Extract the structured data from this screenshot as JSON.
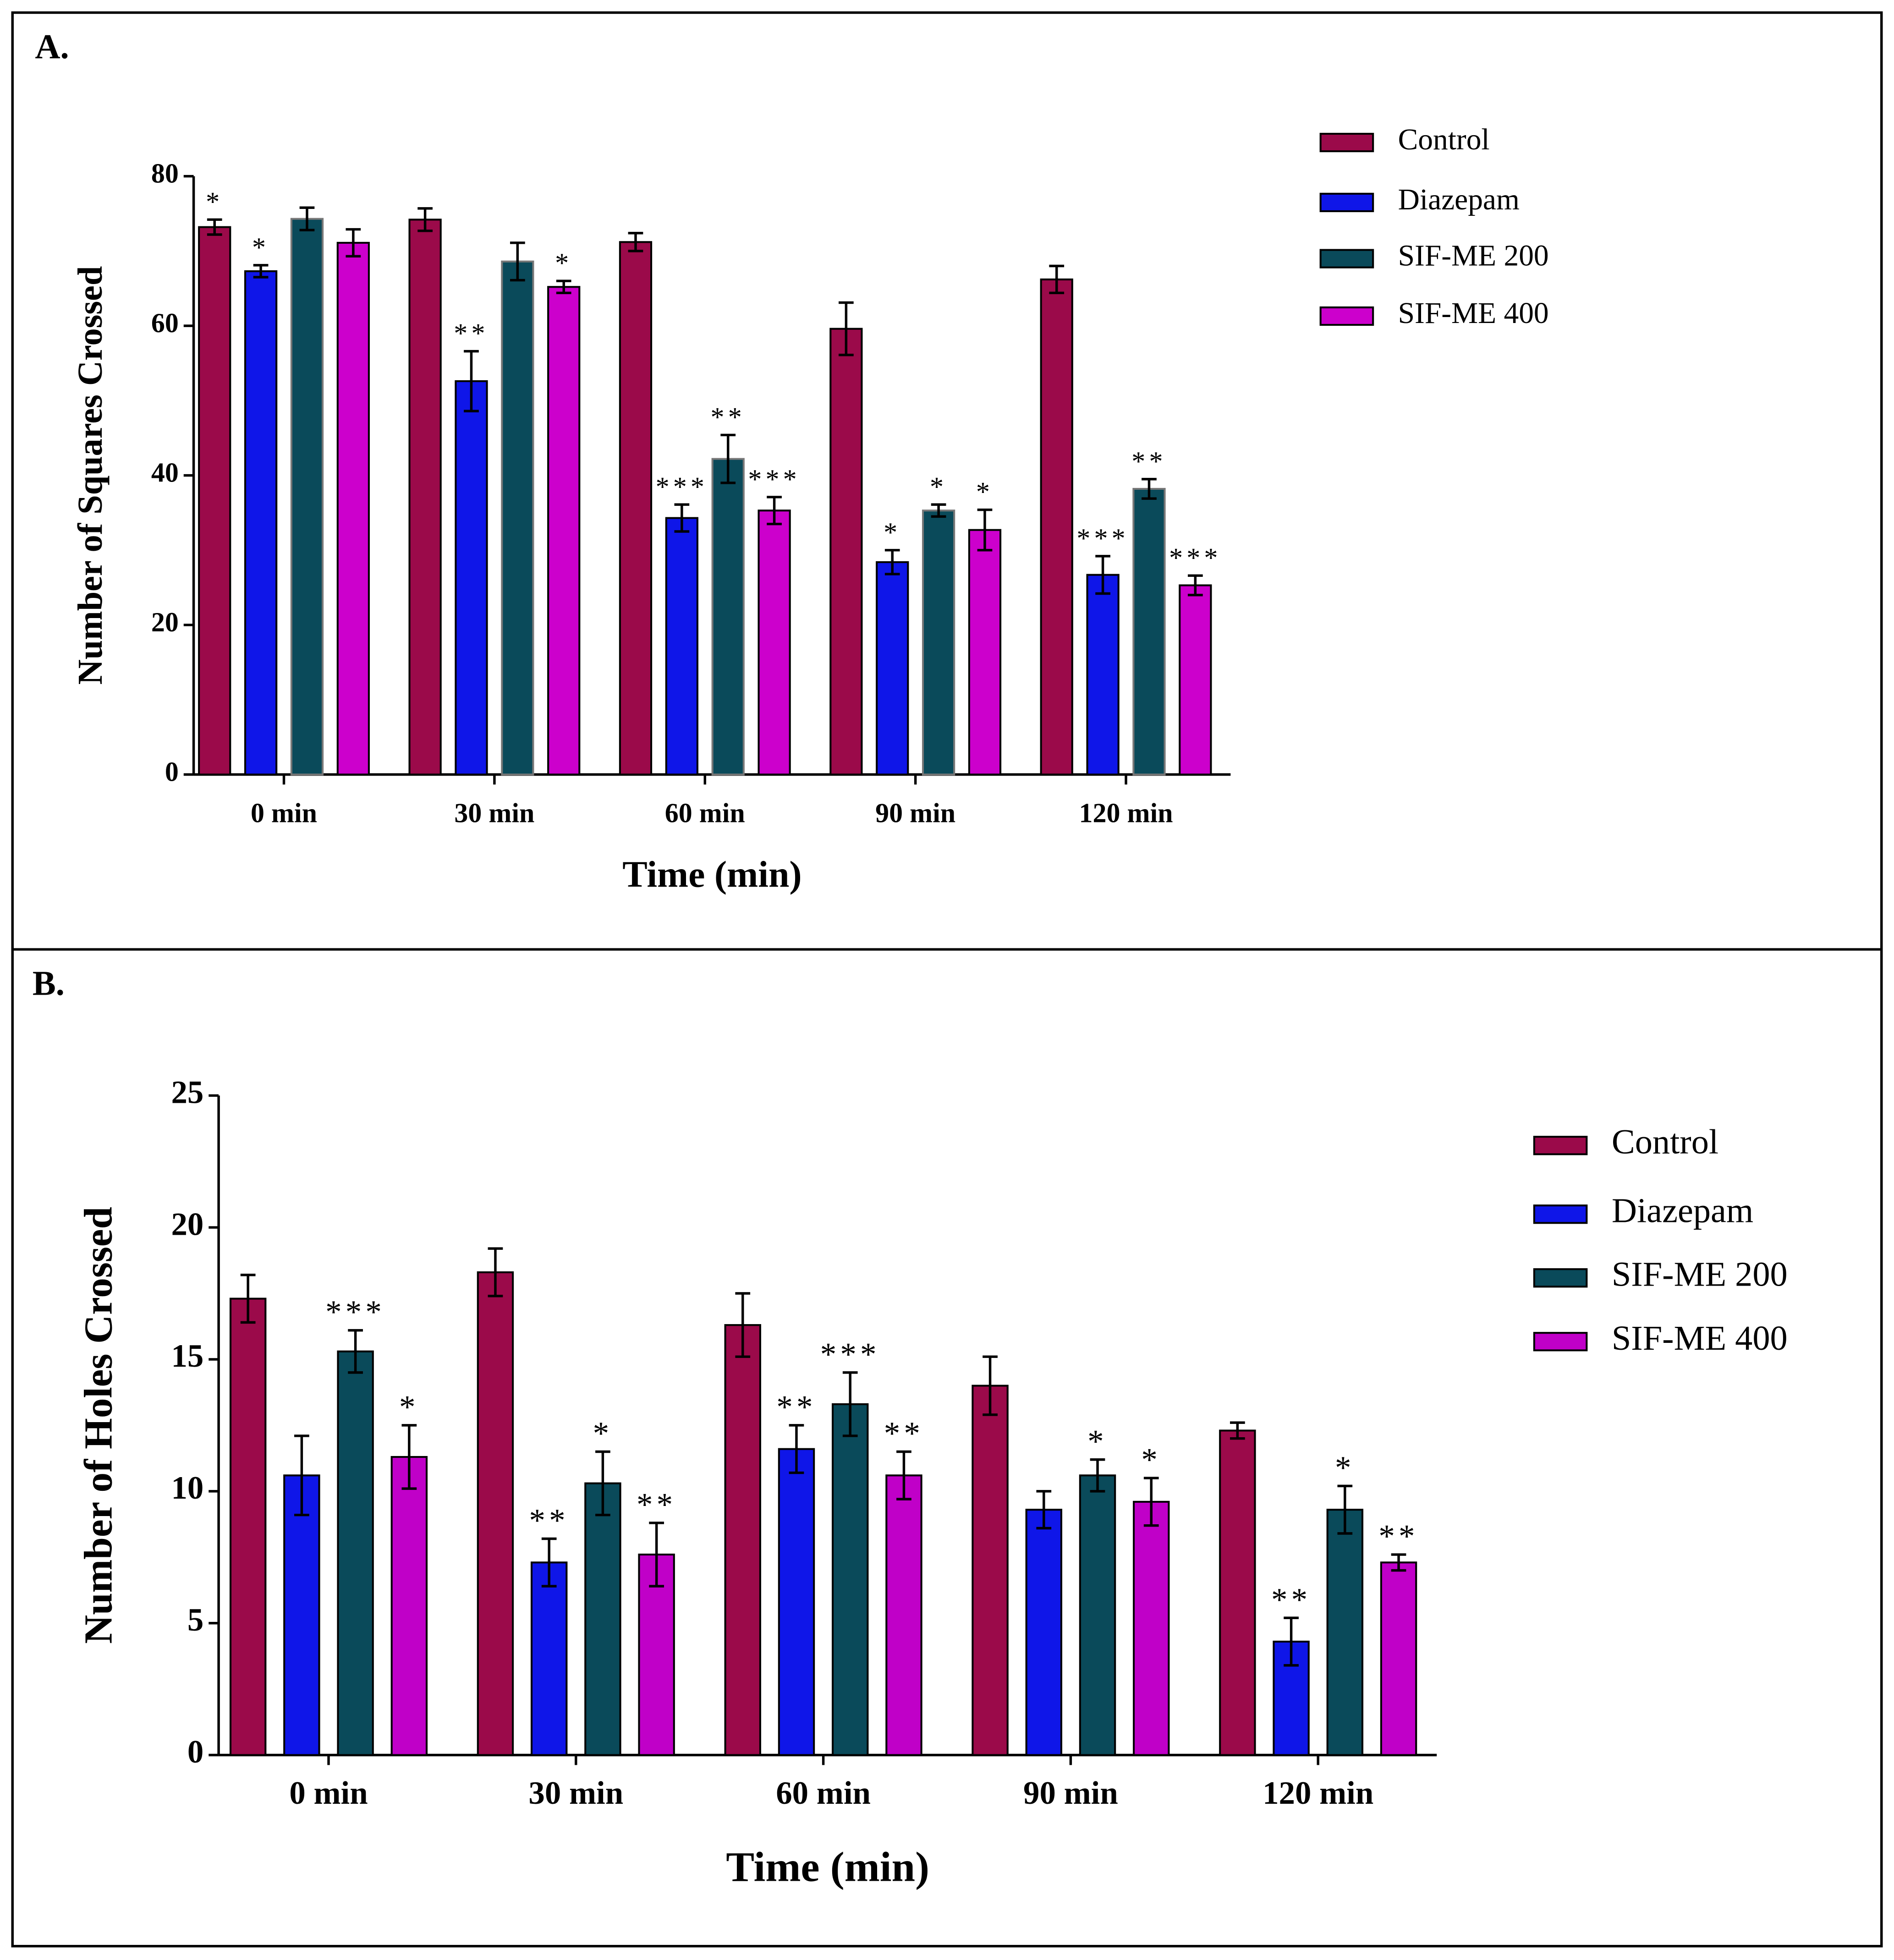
{
  "chart_data": [
    {
      "type": "bar",
      "panel_label": "A.",
      "x_label": "Time (min)",
      "y_label": "Number of Squares Crossed",
      "categories": [
        "0 min",
        "30 min",
        "60 min",
        "90 min",
        "120 min"
      ],
      "ylim": [
        0,
        80
      ],
      "yticks": [
        0,
        20,
        40,
        60,
        80
      ],
      "series": [
        {
          "name": "Control",
          "color": "#9b0a4a",
          "values": [
            73.2,
            74.2,
            71.2,
            59.6,
            66.2
          ],
          "errors": [
            1.0,
            1.5,
            1.2,
            3.5,
            1.8
          ],
          "significance": [
            "*",
            null,
            null,
            null,
            null
          ]
        },
        {
          "name": "Diazepam",
          "color": "#0f16e8",
          "values": [
            67.3,
            52.6,
            34.3,
            28.4,
            26.7
          ],
          "errors": [
            0.8,
            4.0,
            1.8,
            1.6,
            2.5
          ],
          "significance": [
            "*",
            "**",
            "***",
            "*",
            "***"
          ]
        },
        {
          "name": "SIF-ME 200",
          "color": "#0a4a5a",
          "values": [
            74.3,
            68.6,
            42.2,
            35.3,
            38.2
          ],
          "errors": [
            1.5,
            2.5,
            3.2,
            0.8,
            1.3
          ],
          "significance": [
            null,
            null,
            "**",
            "*",
            "**"
          ]
        },
        {
          "name": "SIF-ME 400",
          "color": "#cc00cc",
          "values": [
            71.1,
            65.2,
            35.3,
            32.7,
            25.3
          ],
          "errors": [
            1.8,
            0.8,
            1.8,
            2.7,
            1.3
          ],
          "significance": [
            null,
            "*",
            "***",
            "*",
            "***"
          ]
        }
      ]
    },
    {
      "type": "bar",
      "panel_label": "B.",
      "x_label": "Time (min)",
      "y_label": "Number of Holes Crossed",
      "categories": [
        "0 min",
        "30 min",
        "60 min",
        "90 min",
        "120 min"
      ],
      "ylim": [
        0,
        25
      ],
      "yticks": [
        0,
        5,
        10,
        15,
        20,
        25
      ],
      "series": [
        {
          "name": "Control",
          "color": "#9b0a4a",
          "values": [
            17.3,
            18.3,
            16.3,
            14.0,
            12.3
          ],
          "errors": [
            0.9,
            0.9,
            1.2,
            1.1,
            0.3
          ],
          "significance": [
            null,
            null,
            null,
            null,
            null
          ]
        },
        {
          "name": "Diazepam",
          "color": "#0f16e8",
          "values": [
            10.6,
            7.3,
            11.6,
            9.3,
            4.3
          ],
          "errors": [
            1.5,
            0.9,
            0.9,
            0.7,
            0.9
          ],
          "significance": [
            null,
            "**",
            "**",
            null,
            "**"
          ]
        },
        {
          "name": "SIF-ME 200",
          "color": "#0a4a5a",
          "values": [
            15.3,
            10.3,
            13.3,
            10.6,
            9.3
          ],
          "errors": [
            0.8,
            1.2,
            1.2,
            0.6,
            0.9
          ],
          "significance": [
            "***",
            "*",
            "***",
            "*",
            "*"
          ]
        },
        {
          "name": "SIF-ME 400",
          "color": "#c000c8",
          "values": [
            11.3,
            7.6,
            10.6,
            9.6,
            7.3
          ],
          "errors": [
            1.2,
            1.2,
            0.9,
            0.9,
            0.3
          ],
          "significance": [
            "*",
            "**",
            "**",
            "*",
            "**"
          ]
        }
      ]
    }
  ]
}
